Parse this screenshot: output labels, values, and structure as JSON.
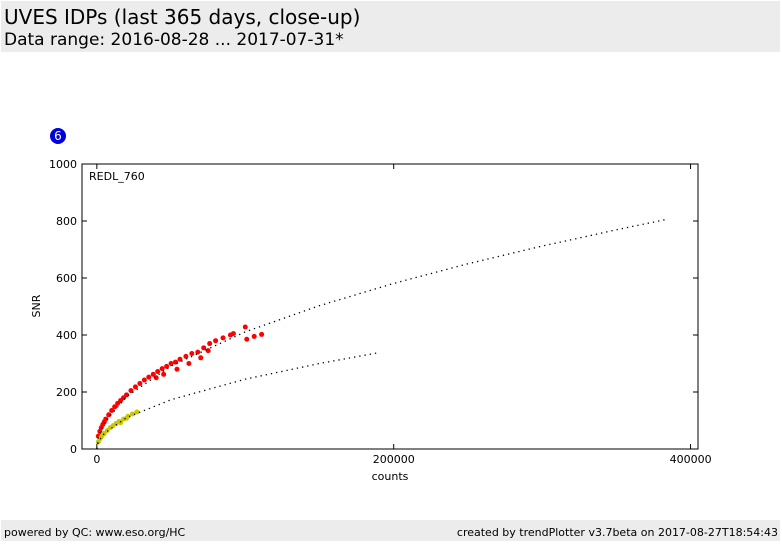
{
  "header": {
    "title": "UVES IDPs (last 365 days, close-up)",
    "subtitle": "Data range: 2016-08-28 ... 2017-07-31*"
  },
  "footer": {
    "left": "powered by QC: www.eso.org/HC",
    "right": "created by trendPlotter v3.7beta on 2017-08-27T18:54:43"
  },
  "chart_data": {
    "type": "scatter",
    "badge": "6",
    "panel_label": "REDL_760",
    "x_label": "counts",
    "y_label": "SNR",
    "xlim": [
      -10000,
      405000
    ],
    "ylim": [
      0,
      1000
    ],
    "xticks": [
      0,
      200000,
      400000
    ],
    "yticks": [
      0,
      200,
      400,
      600,
      800,
      1000
    ],
    "series": [
      {
        "color": "#ff0000",
        "style": "points",
        "x": [
          1000,
          2000,
          3000,
          4000,
          5000,
          6000,
          8000,
          10000,
          12000,
          14000,
          16000,
          18000,
          20000,
          23000,
          26000,
          29000,
          32000,
          35000,
          38000,
          41000,
          44000,
          47000,
          50000,
          53000,
          56000,
          60000,
          64000,
          68000,
          72000,
          76000,
          80000,
          85000,
          90000,
          92000,
          100000,
          101000,
          106000,
          111000,
          54000,
          62000,
          70000,
          75000,
          45000,
          40000
        ],
        "values": [
          45,
          62,
          75,
          86,
          95,
          105,
          120,
          135,
          148,
          160,
          170,
          180,
          190,
          205,
          218,
          230,
          242,
          252,
          262,
          272,
          282,
          290,
          300,
          305,
          315,
          325,
          335,
          340,
          355,
          370,
          380,
          390,
          400,
          405,
          428,
          385,
          395,
          402,
          280,
          300,
          320,
          345,
          262,
          250
        ]
      },
      {
        "color": "#c8c800",
        "style": "points",
        "x": [
          1000,
          2000,
          3000,
          4000,
          5000,
          7000,
          9000,
          11000,
          13000,
          15000,
          18000,
          21000,
          24000,
          27000,
          16000,
          20000
        ],
        "values": [
          25,
          35,
          42,
          50,
          55,
          65,
          75,
          82,
          90,
          97,
          105,
          115,
          123,
          130,
          92,
          108
        ]
      },
      {
        "color": "#000000",
        "style": "dotted",
        "x": [
          0,
          1000,
          5000,
          20000,
          50000,
          100000,
          150000,
          200000,
          250000,
          300000,
          350000,
          385000
        ],
        "values": [
          0,
          41,
          92,
          184,
          291,
          411,
          503,
          581,
          650,
          712,
          769,
          807
        ]
      },
      {
        "color": "#000000",
        "style": "dotted",
        "x": [
          0,
          1000,
          5000,
          20000,
          50000,
          100000,
          150000,
          190000
        ],
        "values": [
          0,
          25,
          55,
          110,
          173,
          245,
          300,
          338
        ]
      }
    ]
  }
}
